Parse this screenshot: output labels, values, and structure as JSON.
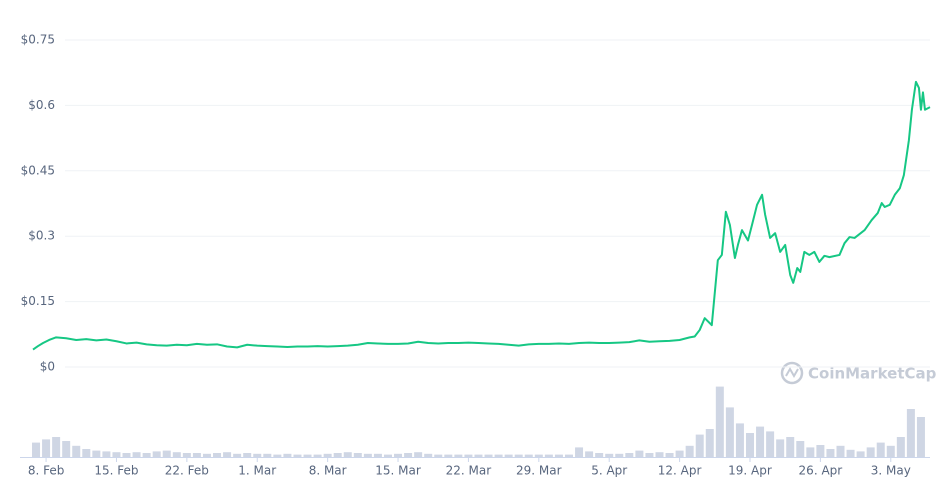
{
  "chart_data": {
    "type": "line",
    "watermark": "CoinMarketCap",
    "grid": true,
    "xlim": [
      -1.3,
      87.9
    ],
    "xticks": [
      {
        "value": 0,
        "label": "8. Feb"
      },
      {
        "value": 7,
        "label": "15. Feb"
      },
      {
        "value": 14,
        "label": "22. Feb"
      },
      {
        "value": 21,
        "label": "1. Mar"
      },
      {
        "value": 28,
        "label": "8. Mar"
      },
      {
        "value": 35,
        "label": "15. Mar"
      },
      {
        "value": 42,
        "label": "22. Mar"
      },
      {
        "value": 49,
        "label": "29. Mar"
      },
      {
        "value": 56,
        "label": "5. Apr"
      },
      {
        "value": 63,
        "label": "12. Apr"
      },
      {
        "value": 70,
        "label": "19. Apr"
      },
      {
        "value": 77,
        "label": "26. Apr"
      },
      {
        "value": 84,
        "label": "3. May"
      }
    ],
    "ylim": [
      0,
      0.75
    ],
    "yticks": [
      {
        "value": 0,
        "label": "$0"
      },
      {
        "value": 0.15,
        "label": "$0.15"
      },
      {
        "value": 0.3,
        "label": "$0.3"
      },
      {
        "value": 0.45,
        "label": "$0.45"
      },
      {
        "value": 0.6,
        "label": "$0.6"
      },
      {
        "value": 0.75,
        "label": "$0.75"
      }
    ],
    "y2lim": [
      0,
      100
    ],
    "series": [
      {
        "type": "line",
        "color": "#16c784",
        "x": [
          -1.3,
          -0.8,
          -0.3,
          0.3,
          1,
          2,
          3,
          4,
          5,
          6,
          7,
          8,
          9,
          10,
          11,
          12,
          13,
          14,
          15,
          16,
          17,
          18,
          19,
          20,
          21,
          22,
          23,
          24,
          25,
          26,
          27,
          28,
          29,
          30,
          31,
          32,
          33,
          34,
          35,
          36,
          37,
          38,
          39,
          40,
          41,
          42,
          43,
          44,
          45,
          46,
          47,
          48,
          49,
          50,
          51,
          52,
          53,
          54,
          55,
          56,
          57,
          58,
          59,
          60,
          61,
          62,
          63,
          64,
          64.5,
          65,
          65.5,
          66.2,
          66.8,
          67.2,
          67.6,
          68,
          68.5,
          68.8,
          69.2,
          69.8,
          70.2,
          70.7,
          71.2,
          71.5,
          72,
          72.5,
          73,
          73.5,
          74,
          74.3,
          74.7,
          75,
          75.4,
          75.9,
          76.4,
          76.9,
          77.4,
          77.9,
          78.9,
          79.4,
          79.9,
          80.4,
          81.4,
          82.1,
          82.7,
          83.1,
          83.4,
          83.9,
          84.4,
          84.9,
          85.3,
          85.8,
          86.1,
          86.5,
          86.8,
          87,
          87.2,
          87.4,
          87.9
        ],
        "values": [
          0.04,
          0.048,
          0.055,
          0.062,
          0.068,
          0.066,
          0.062,
          0.064,
          0.061,
          0.063,
          0.059,
          0.054,
          0.056,
          0.052,
          0.05,
          0.049,
          0.051,
          0.05,
          0.053,
          0.051,
          0.052,
          0.047,
          0.045,
          0.051,
          0.049,
          0.048,
          0.047,
          0.046,
          0.047,
          0.047,
          0.048,
          0.047,
          0.048,
          0.049,
          0.051,
          0.055,
          0.054,
          0.053,
          0.053,
          0.054,
          0.058,
          0.055,
          0.054,
          0.055,
          0.055,
          0.056,
          0.055,
          0.054,
          0.053,
          0.051,
          0.049,
          0.052,
          0.053,
          0.053,
          0.054,
          0.053,
          0.055,
          0.056,
          0.055,
          0.055,
          0.056,
          0.057,
          0.061,
          0.058,
          0.059,
          0.06,
          0.062,
          0.068,
          0.07,
          0.085,
          0.112,
          0.096,
          0.245,
          0.257,
          0.356,
          0.326,
          0.25,
          0.28,
          0.314,
          0.29,
          0.326,
          0.372,
          0.395,
          0.35,
          0.296,
          0.307,
          0.264,
          0.28,
          0.211,
          0.193,
          0.227,
          0.218,
          0.264,
          0.257,
          0.264,
          0.241,
          0.255,
          0.252,
          0.257,
          0.284,
          0.298,
          0.296,
          0.314,
          0.337,
          0.353,
          0.376,
          0.367,
          0.372,
          0.395,
          0.41,
          0.44,
          0.52,
          0.59,
          0.654,
          0.64,
          0.59,
          0.63,
          0.59,
          0.596
        ]
      },
      {
        "type": "bar",
        "axis": "y2",
        "color": "#cfd6e4",
        "x": [
          -1,
          0,
          1,
          2,
          3,
          4,
          5,
          6,
          7,
          8,
          9,
          10,
          11,
          12,
          13,
          14,
          15,
          16,
          17,
          18,
          19,
          20,
          21,
          22,
          23,
          24,
          25,
          26,
          27,
          28,
          29,
          30,
          31,
          32,
          33,
          34,
          35,
          36,
          37,
          38,
          39,
          40,
          41,
          42,
          43,
          44,
          45,
          46,
          47,
          48,
          49,
          50,
          51,
          52,
          53,
          54,
          55,
          56,
          57,
          58,
          59,
          60,
          61,
          62,
          63,
          64,
          65,
          66,
          67,
          68,
          69,
          70,
          71,
          72,
          73,
          74,
          75,
          76,
          77,
          78,
          79,
          80,
          81,
          82,
          83,
          84,
          85,
          86,
          87
        ],
        "values": [
          18,
          22,
          25,
          20,
          14,
          10,
          8,
          7,
          6,
          5,
          6,
          5,
          7,
          8,
          6,
          5,
          5,
          4,
          5,
          6,
          4,
          5,
          4,
          4,
          3,
          4,
          3,
          3,
          3,
          4,
          5,
          6,
          5,
          4,
          4,
          3,
          4,
          5,
          6,
          4,
          3,
          3,
          3,
          3,
          3,
          3,
          3,
          3,
          3,
          3,
          3,
          3,
          3,
          3,
          12,
          7,
          5,
          4,
          4,
          5,
          8,
          5,
          6,
          5,
          8,
          14,
          28,
          35,
          88,
          62,
          42,
          30,
          38,
          32,
          22,
          25,
          20,
          12,
          15,
          10,
          14,
          9,
          7,
          12,
          18,
          14,
          25,
          60,
          50
        ]
      }
    ]
  }
}
